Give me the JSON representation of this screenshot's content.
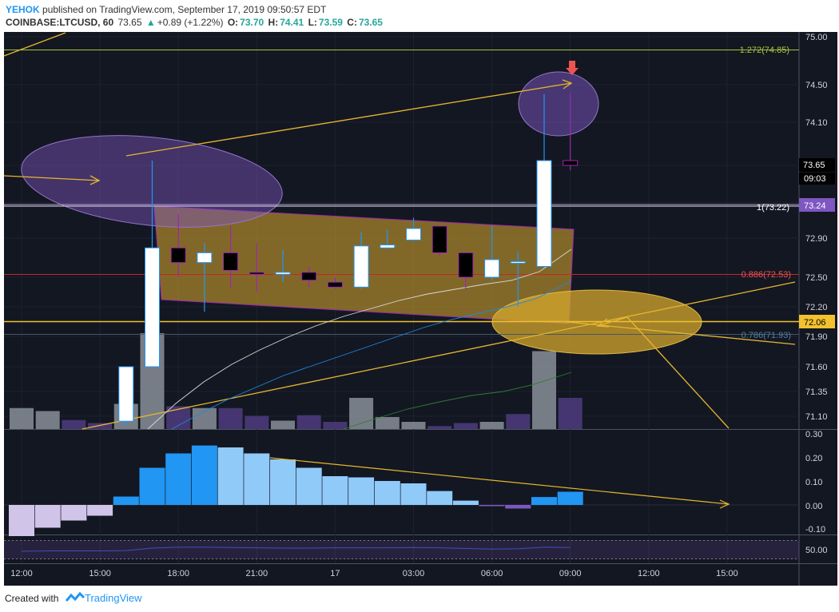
{
  "header": {
    "user": "YEHOK",
    "published": "published on TradingView.com, September 17, 2019 09:50:57 EDT",
    "symbol": "COINBASE:LTCUSD, 60",
    "last": "73.65",
    "change": "+0.89 (+1.22%)",
    "o_label": "O:",
    "o": "73.70",
    "h_label": "H:",
    "h": "74.41",
    "l_label": "L:",
    "l": "73.59",
    "c_label": "C:",
    "c": "73.65"
  },
  "footer": {
    "created": "Created with",
    "brand": "TradingView"
  },
  "colors": {
    "bg": "#131722",
    "up": "#ffffff",
    "down": "#000000",
    "wick_up": "#2196f3",
    "wick_down": "#9c27b0",
    "fib": "#d4b02d",
    "channel": "#e6b630",
    "ellipse": "#7e57c2",
    "macd_up": "#2196f3",
    "macd_up_light": "#90caf9",
    "macd_down": "#d1c4e9"
  },
  "chart_data": [
    {
      "type": "candlestick",
      "title": "",
      "y_ticks": [
        "75.00",
        "74.50",
        "74.10",
        "73.65",
        "73.20",
        "72.90",
        "72.50",
        "72.20",
        "71.90",
        "71.60",
        "71.35",
        "71.10"
      ],
      "ylim": [
        70.9,
        75.05
      ],
      "x_ticks": [
        "12:00",
        "15:00",
        "18:00",
        "21:00",
        "17",
        "03:00",
        "06:00",
        "09:00",
        "12:00",
        "15:00"
      ],
      "price_labels": {
        "last_price": "73.65",
        "countdown": "09:03",
        "level_1": "73.24",
        "level_2": "72.06",
        "fib_1": "1(73.22)",
        "fib_0886": "0.886(72.53)",
        "fib_0786": "0.786(71.93)",
        "fib_1272": "1.272(74.85)"
      },
      "candles": [
        {
          "t": "16:00",
          "o": 71.05,
          "h": 71.6,
          "l": 71.0,
          "c": 71.6
        },
        {
          "t": "17:00",
          "o": 71.6,
          "h": 73.7,
          "l": 71.6,
          "c": 72.8
        },
        {
          "t": "18:00",
          "o": 72.8,
          "h": 73.1,
          "l": 72.5,
          "c": 72.65
        },
        {
          "t": "19:00",
          "o": 72.65,
          "h": 72.85,
          "l": 72.15,
          "c": 72.75
        },
        {
          "t": "20:00",
          "o": 72.75,
          "h": 73.0,
          "l": 72.4,
          "c": 72.57
        },
        {
          "t": "21:00",
          "o": 72.55,
          "h": 72.85,
          "l": 72.35,
          "c": 72.53
        },
        {
          "t": "22:00",
          "o": 72.53,
          "h": 72.78,
          "l": 72.45,
          "c": 72.55
        },
        {
          "t": "23:00",
          "o": 72.55,
          "h": 72.6,
          "l": 72.4,
          "c": 72.47
        },
        {
          "t": "00:00",
          "o": 72.45,
          "h": 72.5,
          "l": 72.38,
          "c": 72.4
        },
        {
          "t": "01:00",
          "o": 72.4,
          "h": 72.95,
          "l": 72.38,
          "c": 72.82
        },
        {
          "t": "02:00",
          "o": 72.8,
          "h": 72.97,
          "l": 72.79,
          "c": 72.83
        },
        {
          "t": "03:00",
          "o": 72.88,
          "h": 73.07,
          "l": 72.87,
          "c": 72.98
        },
        {
          "t": "04:00",
          "o": 73.0,
          "h": 73.0,
          "l": 72.72,
          "c": 72.75
        },
        {
          "t": "05:00",
          "o": 72.75,
          "h": 72.75,
          "l": 72.38,
          "c": 72.5
        },
        {
          "t": "06:00",
          "o": 72.5,
          "h": 73.0,
          "l": 72.47,
          "c": 72.68
        },
        {
          "t": "07:00",
          "o": 72.66,
          "h": 72.76,
          "l": 72.2,
          "c": 72.66
        },
        {
          "t": "08:00",
          "o": 72.61,
          "h": 74.4,
          "l": 72.6,
          "c": 73.7
        },
        {
          "t": "09:00",
          "o": 73.7,
          "h": 74.41,
          "l": 73.59,
          "c": 73.65
        }
      ],
      "volume": [
        {
          "t": "12:00",
          "v": 0.35,
          "up": true
        },
        {
          "t": "13:00",
          "v": 0.3,
          "up": true
        },
        {
          "t": "14:00",
          "v": 0.15,
          "up": false
        },
        {
          "t": "15:00",
          "v": 0.1,
          "up": false
        },
        {
          "t": "16:00",
          "v": 0.42,
          "up": true
        },
        {
          "t": "17:00",
          "v": 1.6,
          "up": true
        },
        {
          "t": "18:00",
          "v": 0.38,
          "up": false
        },
        {
          "t": "19:00",
          "v": 0.35,
          "up": true
        },
        {
          "t": "20:00",
          "v": 0.35,
          "up": false
        },
        {
          "t": "21:00",
          "v": 0.22,
          "up": false
        },
        {
          "t": "22:00",
          "v": 0.14,
          "up": true
        },
        {
          "t": "23:00",
          "v": 0.23,
          "up": false
        },
        {
          "t": "00:00",
          "v": 0.12,
          "up": false
        },
        {
          "t": "01:00",
          "v": 0.52,
          "up": true
        },
        {
          "t": "02:00",
          "v": 0.2,
          "up": true
        },
        {
          "t": "03:00",
          "v": 0.12,
          "up": true
        },
        {
          "t": "04:00",
          "v": 0.05,
          "up": false
        },
        {
          "t": "05:00",
          "v": 0.1,
          "up": false
        },
        {
          "t": "06:00",
          "v": 0.12,
          "up": true
        },
        {
          "t": "07:00",
          "v": 0.25,
          "up": false
        },
        {
          "t": "08:00",
          "v": 1.3,
          "up": true
        },
        {
          "t": "09:00",
          "v": 0.52,
          "up": false
        }
      ]
    },
    {
      "type": "bar",
      "title": "",
      "y_ticks": [
        "0.30",
        "0.20",
        "0.10",
        "0.00",
        "-0.10"
      ],
      "ylim": [
        -0.13,
        0.3
      ],
      "values": [
        -0.13,
        -0.095,
        -0.065,
        -0.045,
        0.035,
        0.155,
        0.215,
        0.248,
        0.24,
        0.215,
        0.19,
        0.155,
        0.12,
        0.115,
        0.1,
        0.09,
        0.058,
        0.018,
        -0.005,
        -0.015,
        0.033,
        0.055
      ]
    },
    {
      "type": "line",
      "title": "",
      "y_ticks": [
        "50.00"
      ],
      "ylim": [
        20,
        80
      ],
      "values": [
        45,
        46,
        46,
        46,
        47,
        55,
        58,
        58,
        57,
        56,
        55,
        55,
        56,
        56,
        56,
        57,
        56,
        54,
        52,
        53,
        58,
        57
      ]
    }
  ]
}
